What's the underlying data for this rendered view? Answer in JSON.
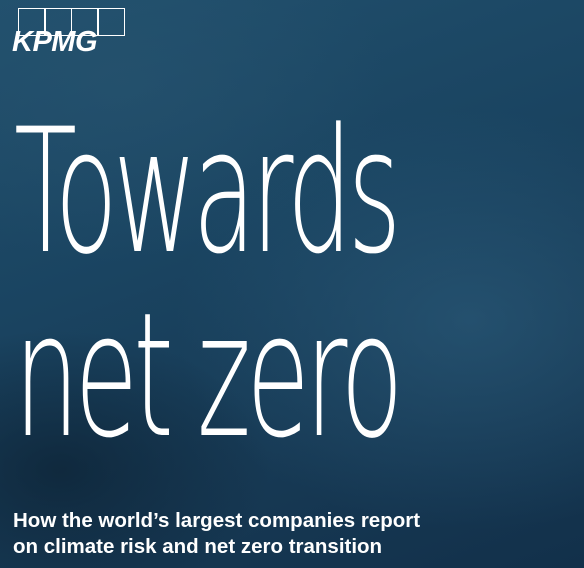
{
  "brand": {
    "logo_text": "KPMG"
  },
  "cover": {
    "title_lines": [
      "Towards",
      "net zero"
    ],
    "subtitle_lines": [
      "How the world’s largest companies report",
      "on climate risk and net zero transition"
    ]
  },
  "colors": {
    "background": "#1b3f5b",
    "text": "#ffffff"
  }
}
